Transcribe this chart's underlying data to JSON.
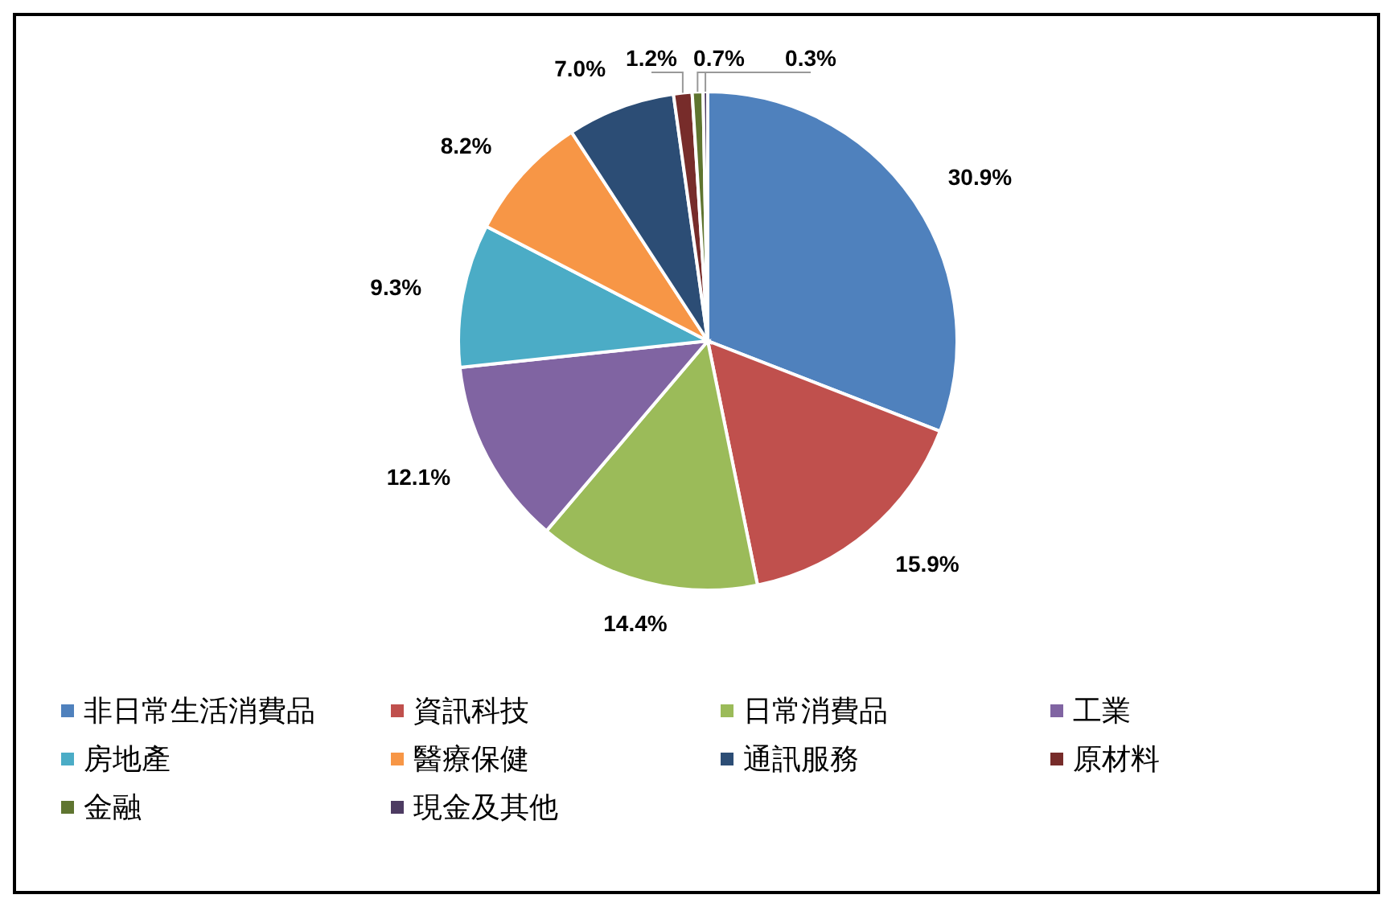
{
  "chart_data": {
    "type": "pie",
    "categories": [
      "非日常生活消費品",
      "資訊科技",
      "日常消費品",
      "工業",
      "房地產",
      "醫療保健",
      "通訊服務",
      "原材料",
      "金融",
      "現金及其他"
    ],
    "values": [
      30.9,
      15.9,
      14.4,
      12.1,
      9.3,
      8.2,
      7.0,
      1.2,
      0.7,
      0.3
    ],
    "value_labels": [
      "30.9%",
      "15.9%",
      "14.4%",
      "12.1%",
      "9.3%",
      "8.2%",
      "7.0%",
      "1.2%",
      "0.7%",
      "0.3%"
    ],
    "colors": [
      "#4f81bd",
      "#c0504d",
      "#9bbb59",
      "#8064a2",
      "#4bacc6",
      "#f79646",
      "#2c4d75",
      "#772c2a",
      "#5f7530",
      "#4d3b62"
    ],
    "legend": "bottom"
  }
}
